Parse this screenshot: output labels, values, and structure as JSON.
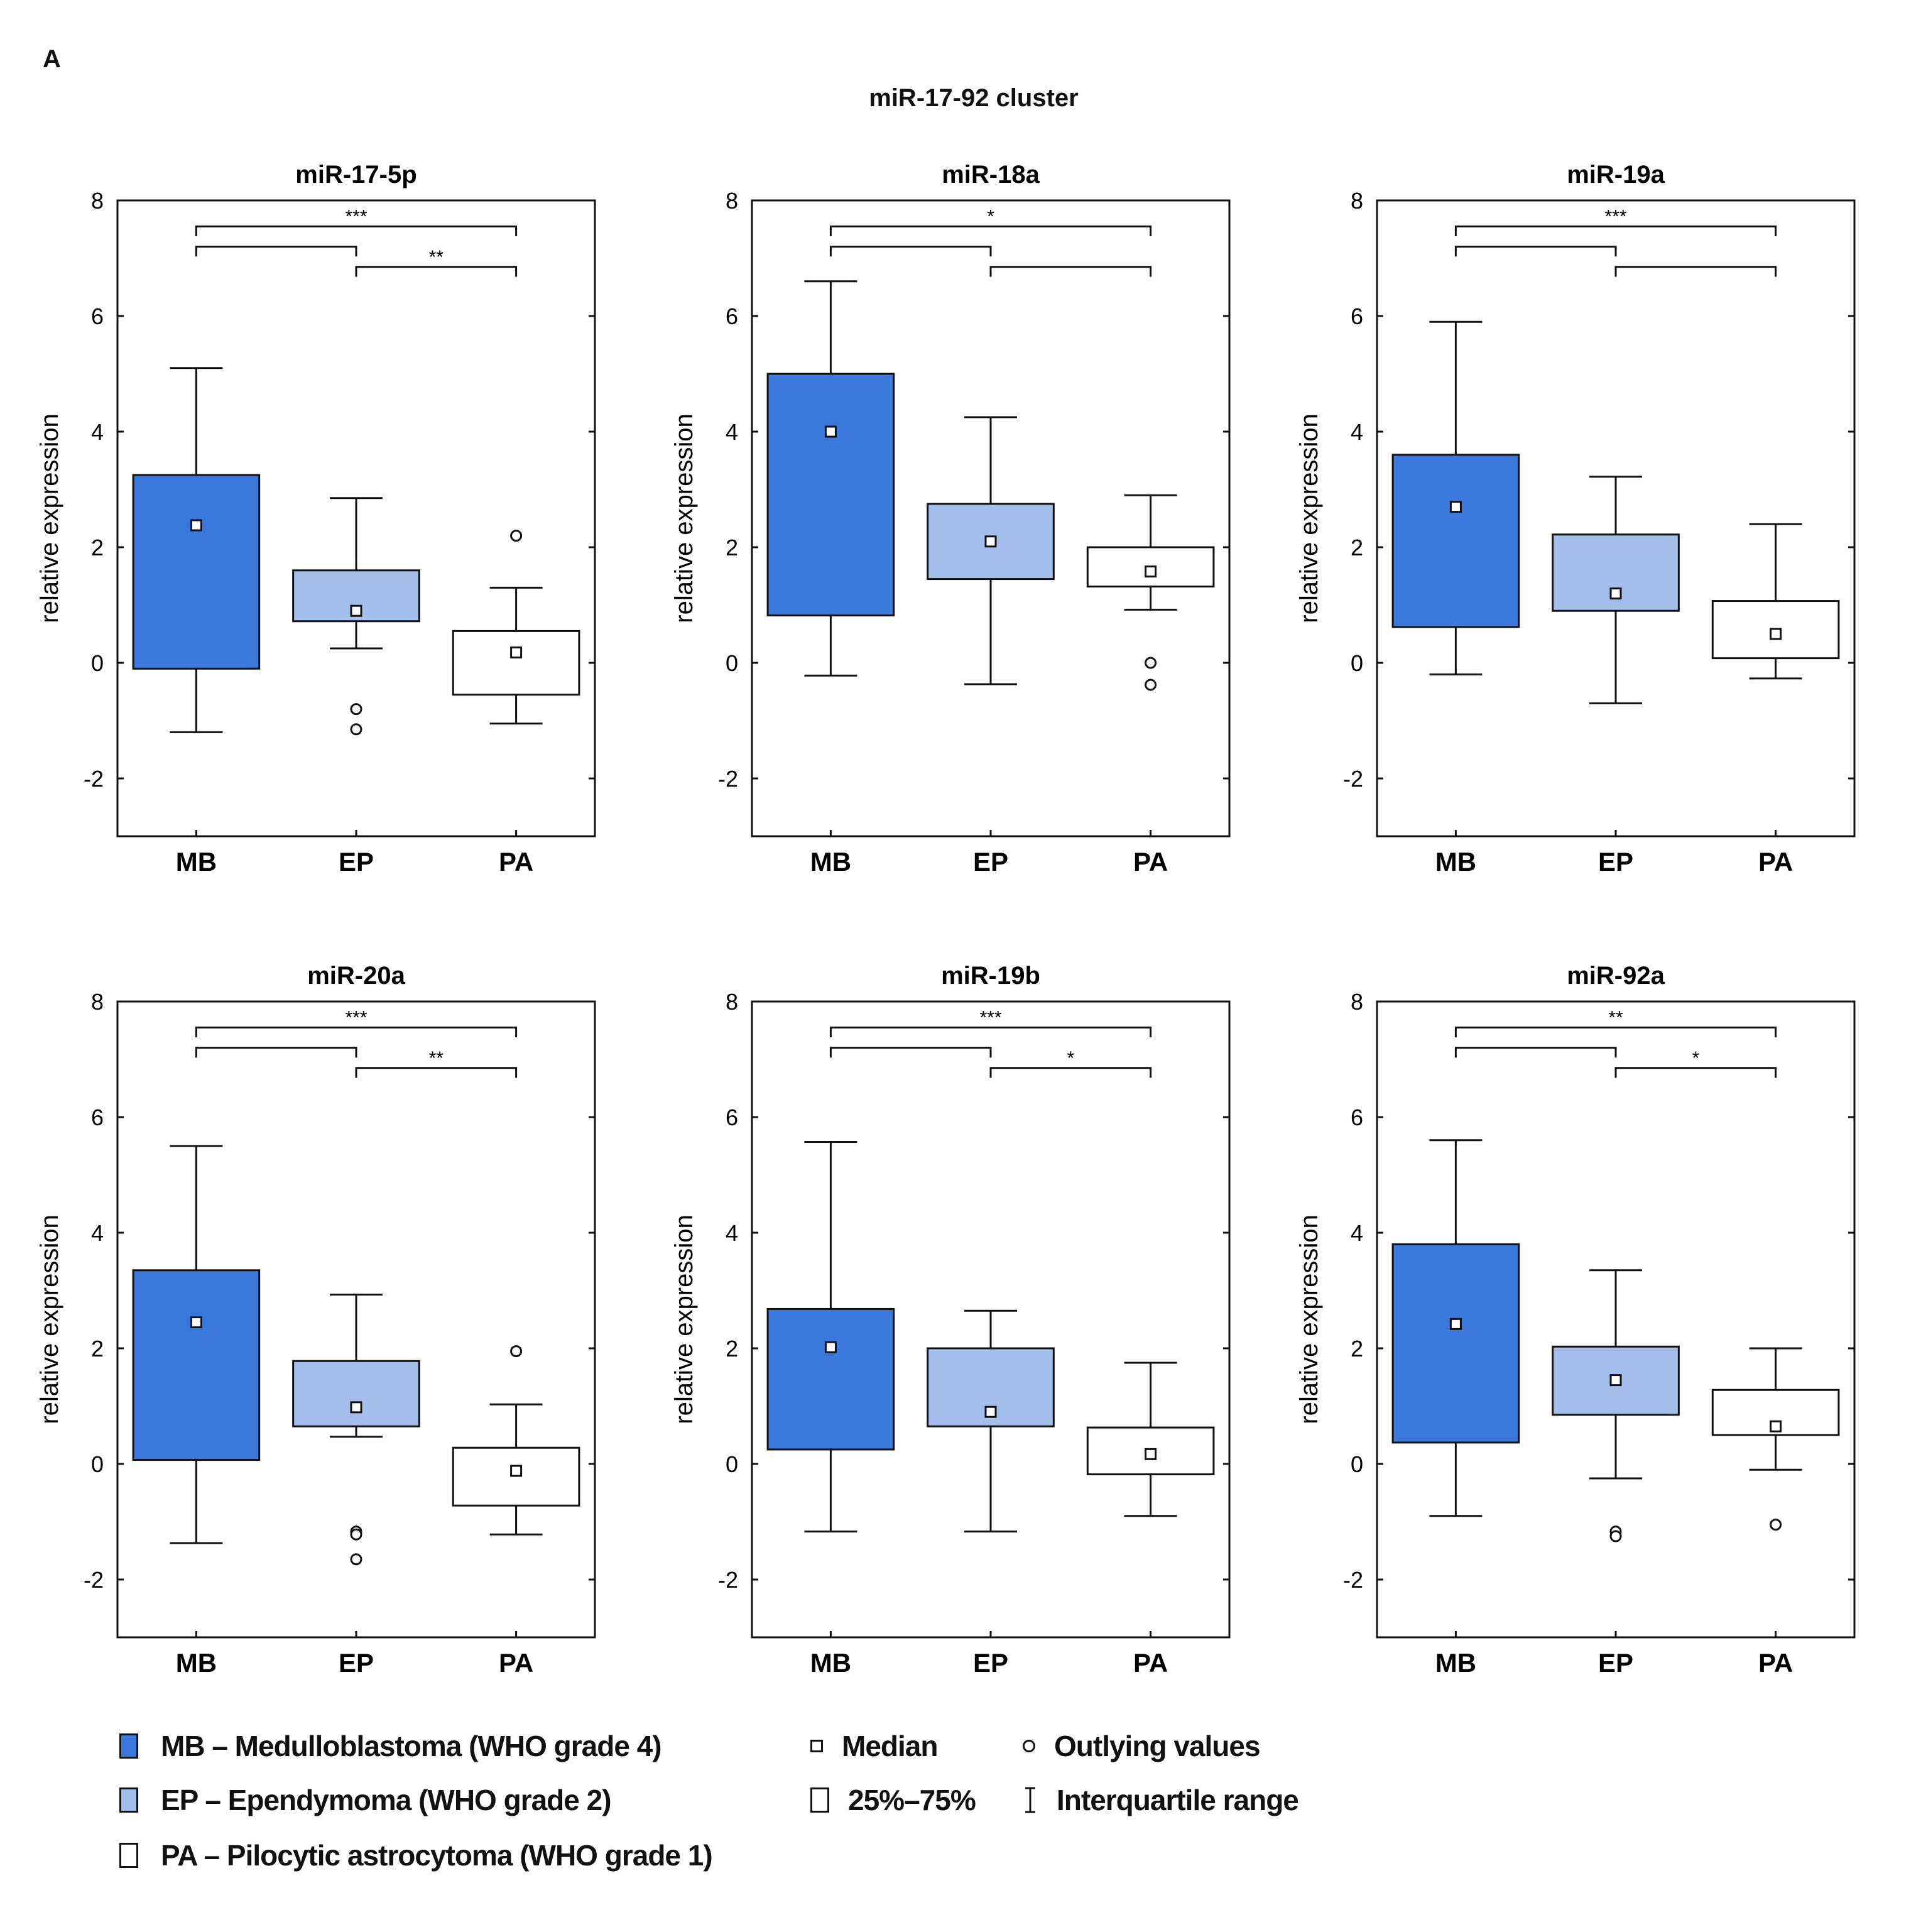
{
  "panel_label": "A",
  "figure_title": "miR-17-92 cluster",
  "colors": {
    "MB": "#3a78dc",
    "EP": "#a4bfec",
    "PA": "#ffffff",
    "stroke": "#111111"
  },
  "legend": {
    "groups": [
      {
        "key": "MB",
        "label": "MB – Medulloblastoma (WHO grade 4)"
      },
      {
        "key": "EP",
        "label": "EP – Ependymoma (WHO grade 2)"
      },
      {
        "key": "PA",
        "label": "PA – Pilocytic astrocytoma (WHO grade 1)"
      }
    ],
    "median": "Median",
    "outliers": "Outlying values",
    "box": "25%–75%",
    "whisker": "Interquartile range"
  },
  "chart_data": [
    {
      "type": "box",
      "title": "miR-17-5p",
      "ylabel": "relative expression",
      "ylim": [
        -3,
        8
      ],
      "yticks": [
        "-2",
        "0",
        "2",
        "4",
        "6",
        "8"
      ],
      "categories": [
        "MB",
        "EP",
        "PA"
      ],
      "boxes": [
        {
          "low": -1.2,
          "q1": -0.1,
          "median": 2.38,
          "q3": 3.25,
          "high": 5.1,
          "outliers": []
        },
        {
          "low": 0.25,
          "q1": 0.72,
          "median": 0.9,
          "q3": 1.6,
          "high": 2.85,
          "outliers": [
            -0.8,
            -1.15
          ]
        },
        {
          "low": -1.05,
          "q1": -0.55,
          "median": 0.18,
          "q3": 0.55,
          "high": 1.3,
          "outliers": [
            2.2
          ]
        }
      ],
      "significance": {
        "MB_PA": "***",
        "MB_EP": "",
        "EP_PA": "**"
      }
    },
    {
      "type": "box",
      "title": "miR-18a",
      "ylabel": "relative expression",
      "ylim": [
        -3,
        8
      ],
      "yticks": [
        "-2",
        "0",
        "2",
        "4",
        "6",
        "8"
      ],
      "categories": [
        "MB",
        "EP",
        "PA"
      ],
      "boxes": [
        {
          "low": -0.22,
          "q1": 0.82,
          "median": 4.0,
          "q3": 5.0,
          "high": 6.6,
          "outliers": []
        },
        {
          "low": -0.37,
          "q1": 1.45,
          "median": 2.1,
          "q3": 2.75,
          "high": 4.25,
          "outliers": []
        },
        {
          "low": 0.92,
          "q1": 1.32,
          "median": 1.58,
          "q3": 2.0,
          "high": 2.9,
          "outliers": [
            0.0,
            -0.38
          ]
        }
      ],
      "significance": {
        "MB_PA": "*",
        "MB_EP": "",
        "EP_PA": ""
      }
    },
    {
      "type": "box",
      "title": "miR-19a",
      "ylabel": "relative expression",
      "ylim": [
        -3,
        8
      ],
      "yticks": [
        "-2",
        "0",
        "2",
        "4",
        "6",
        "8"
      ],
      "categories": [
        "MB",
        "EP",
        "PA"
      ],
      "boxes": [
        {
          "low": -0.2,
          "q1": 0.62,
          "median": 2.7,
          "q3": 3.6,
          "high": 5.9,
          "outliers": []
        },
        {
          "low": -0.7,
          "q1": 0.9,
          "median": 1.2,
          "q3": 2.22,
          "high": 3.22,
          "outliers": []
        },
        {
          "low": -0.27,
          "q1": 0.08,
          "median": 0.5,
          "q3": 1.07,
          "high": 2.4,
          "outliers": []
        }
      ],
      "significance": {
        "MB_PA": "***",
        "MB_EP": "",
        "EP_PA": ""
      }
    },
    {
      "type": "box",
      "title": "miR-20a",
      "ylabel": "relative expression",
      "ylim": [
        -3,
        8
      ],
      "yticks": [
        "-2",
        "0",
        "2",
        "4",
        "6",
        "8"
      ],
      "categories": [
        "MB",
        "EP",
        "PA"
      ],
      "boxes": [
        {
          "low": -1.37,
          "q1": 0.07,
          "median": 2.45,
          "q3": 3.35,
          "high": 5.5,
          "outliers": []
        },
        {
          "low": 0.47,
          "q1": 0.65,
          "median": 0.98,
          "q3": 1.78,
          "high": 2.93,
          "outliers": [
            -1.17,
            -1.22,
            -1.65
          ]
        },
        {
          "low": -1.22,
          "q1": -0.72,
          "median": -0.12,
          "q3": 0.28,
          "high": 1.03,
          "outliers": [
            1.95
          ]
        }
      ],
      "significance": {
        "MB_PA": "***",
        "MB_EP": "",
        "EP_PA": "**"
      }
    },
    {
      "type": "box",
      "title": "miR-19b",
      "ylabel": "relative expression",
      "ylim": [
        -3,
        8
      ],
      "yticks": [
        "-2",
        "0",
        "2",
        "4",
        "6",
        "8"
      ],
      "categories": [
        "MB",
        "EP",
        "PA"
      ],
      "boxes": [
        {
          "low": -1.17,
          "q1": 0.25,
          "median": 2.02,
          "q3": 2.68,
          "high": 5.57,
          "outliers": []
        },
        {
          "low": -1.17,
          "q1": 0.65,
          "median": 0.9,
          "q3": 2.0,
          "high": 2.65,
          "outliers": []
        },
        {
          "low": -0.9,
          "q1": -0.18,
          "median": 0.17,
          "q3": 0.63,
          "high": 1.75,
          "outliers": []
        }
      ],
      "significance": {
        "MB_PA": "***",
        "MB_EP": "",
        "EP_PA": "*"
      }
    },
    {
      "type": "box",
      "title": "miR-92a",
      "ylabel": "relative expression",
      "ylim": [
        -3,
        8
      ],
      "yticks": [
        "-2",
        "0",
        "2",
        "4",
        "6",
        "8"
      ],
      "categories": [
        "MB",
        "EP",
        "PA"
      ],
      "boxes": [
        {
          "low": -0.9,
          "q1": 0.37,
          "median": 2.42,
          "q3": 3.8,
          "high": 5.6,
          "outliers": []
        },
        {
          "low": -0.25,
          "q1": 0.85,
          "median": 1.45,
          "q3": 2.03,
          "high": 3.35,
          "outliers": [
            -1.17,
            -1.25
          ]
        },
        {
          "low": -0.1,
          "q1": 0.5,
          "median": 0.65,
          "q3": 1.28,
          "high": 2.0,
          "outliers": [
            -1.05
          ]
        }
      ],
      "significance": {
        "MB_PA": "**",
        "MB_EP": "",
        "EP_PA": "*"
      }
    }
  ]
}
